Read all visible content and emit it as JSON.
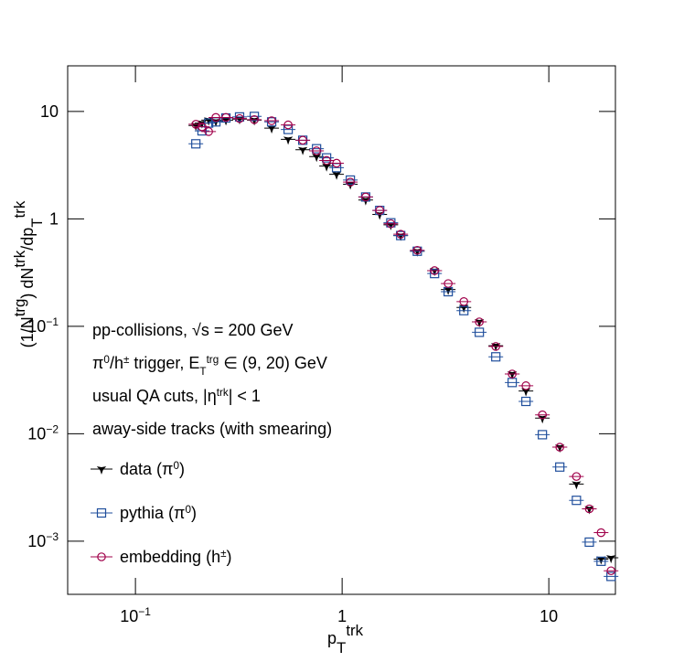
{
  "chart_data": {
    "type": "scatter",
    "xlog": true,
    "ylog": true,
    "xlim": [
      0.047,
      21.0
    ],
    "ylim": [
      0.00032,
      26.6
    ],
    "xticks": [
      {
        "value": 0.1,
        "label": "10",
        "exponent": "−1"
      },
      1,
      10
    ],
    "yticks": [
      {
        "value": 0.001,
        "label": "10",
        "exponent": "−3"
      },
      {
        "value": 0.01,
        "label": "10",
        "exponent": "−2"
      },
      {
        "value": 0.1,
        "label": "10",
        "exponent": "−1"
      },
      1,
      10
    ],
    "x_label": [
      {
        "text": "p"
      },
      {
        "text": "T",
        "pos": "sub"
      },
      {
        "text": "trk",
        "pos": "sup"
      }
    ],
    "y_label": [
      {
        "text": "(1/N"
      },
      {
        "text": "trg",
        "pos": "sup"
      },
      {
        "text": ") dN"
      },
      {
        "text": "trk",
        "pos": "sup"
      },
      {
        "text": "/dp"
      },
      {
        "text": "T",
        "pos": "sub"
      },
      {
        "text": "trk",
        "pos": "sup"
      }
    ],
    "annotations": [
      [
        {
          "text": "pp-collisions, "
        },
        {
          "text": "√s = 200 GeV"
        }
      ],
      [
        {
          "text": "π"
        },
        {
          "text": "0",
          "pos": "sup"
        },
        {
          "text": "/h"
        },
        {
          "text": "±",
          "pos": "sup"
        },
        {
          "text": " trigger, E"
        },
        {
          "text": "T",
          "pos": "sub"
        },
        {
          "text": "trg",
          "pos": "sup"
        },
        {
          "text": " ∈ (9, 20) GeV"
        }
      ],
      [
        {
          "text": "usual QA cuts, |η"
        },
        {
          "text": "trk",
          "pos": "sup"
        },
        {
          "text": "| < 1"
        }
      ],
      [
        {
          "text": "away-side tracks (with smearing)"
        }
      ]
    ],
    "x": [
      0.196,
      0.21,
      0.226,
      0.245,
      0.274,
      0.319,
      0.376,
      0.456,
      0.548,
      0.645,
      0.752,
      0.841,
      0.94,
      1.096,
      1.3,
      1.52,
      1.72,
      1.92,
      2.31,
      2.8,
      3.26,
      3.88,
      4.61,
      5.54,
      6.65,
      7.75,
      9.31,
      11.3,
      13.6,
      15.7,
      17.9,
      20.0
    ],
    "series": [
      {
        "name": [
          {
            "text": "data (π"
          },
          {
            "text": "0",
            "pos": "sup"
          },
          {
            "text": ")"
          }
        ],
        "color": "#000000",
        "marker": "star",
        "values": [
          7.4,
          7.8,
          8.3,
          8.1,
          8.3,
          8.5,
          8.3,
          7.0,
          5.5,
          4.4,
          3.8,
          3.1,
          2.6,
          2.1,
          1.5,
          1.1,
          0.88,
          0.7,
          0.5,
          0.33,
          0.22,
          0.15,
          0.11,
          0.066,
          0.036,
          0.025,
          0.014,
          0.0075,
          0.0034,
          0.002,
          0.00068,
          0.0007
        ]
      },
      {
        "name": [
          {
            "text": "pythia (π"
          },
          {
            "text": "0",
            "pos": "sup"
          },
          {
            "text": ")"
          }
        ],
        "color": "#1f4e9c",
        "marker": "square",
        "values": [
          5.0,
          6.6,
          7.8,
          8.0,
          8.7,
          8.9,
          9.0,
          8.0,
          6.8,
          5.4,
          4.5,
          3.7,
          3.0,
          2.3,
          1.6,
          1.2,
          0.92,
          0.7,
          0.5,
          0.31,
          0.21,
          0.14,
          0.088,
          0.052,
          0.03,
          0.02,
          0.0098,
          0.0049,
          0.0024,
          0.00098,
          0.00065,
          0.00047
        ]
      },
      {
        "name": [
          {
            "text": "embedding (h"
          },
          {
            "text": "±",
            "pos": "sup"
          },
          {
            "text": ")"
          }
        ],
        "color": "#a0004a",
        "marker": "circle",
        "values": [
          7.6,
          7.2,
          6.5,
          8.8,
          8.8,
          8.6,
          8.4,
          8.2,
          7.5,
          5.4,
          4.3,
          3.5,
          3.3,
          2.2,
          1.6,
          1.2,
          0.9,
          0.72,
          0.51,
          0.33,
          0.25,
          0.17,
          0.11,
          0.065,
          0.036,
          0.028,
          0.015,
          0.0075,
          0.004,
          0.002,
          0.0012,
          0.00053
        ]
      }
    ]
  }
}
